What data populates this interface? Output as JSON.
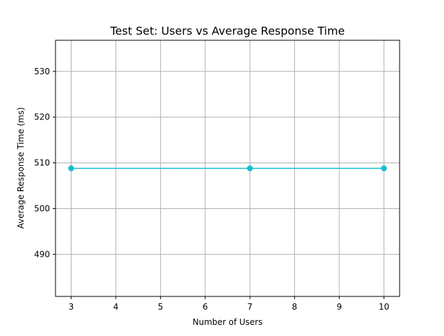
{
  "chart_data": {
    "type": "line",
    "title": "Test Set: Users vs Average Response Time",
    "xlabel": "Number of Users",
    "ylabel": "Average Response Time (ms)",
    "x": [
      3,
      7,
      10
    ],
    "series": [
      {
        "values": [
          508.8,
          508.8,
          508.8
        ],
        "color": "#17becf",
        "marker": "circle"
      }
    ],
    "xlim": [
      2.65,
      10.35
    ],
    "ylim": [
      480.8,
      536.8
    ],
    "xticks": [
      3,
      4,
      5,
      6,
      7,
      8,
      9,
      10
    ],
    "yticks": [
      490,
      500,
      510,
      520,
      530
    ],
    "grid": true,
    "grid_color": "#b0b0b0"
  }
}
